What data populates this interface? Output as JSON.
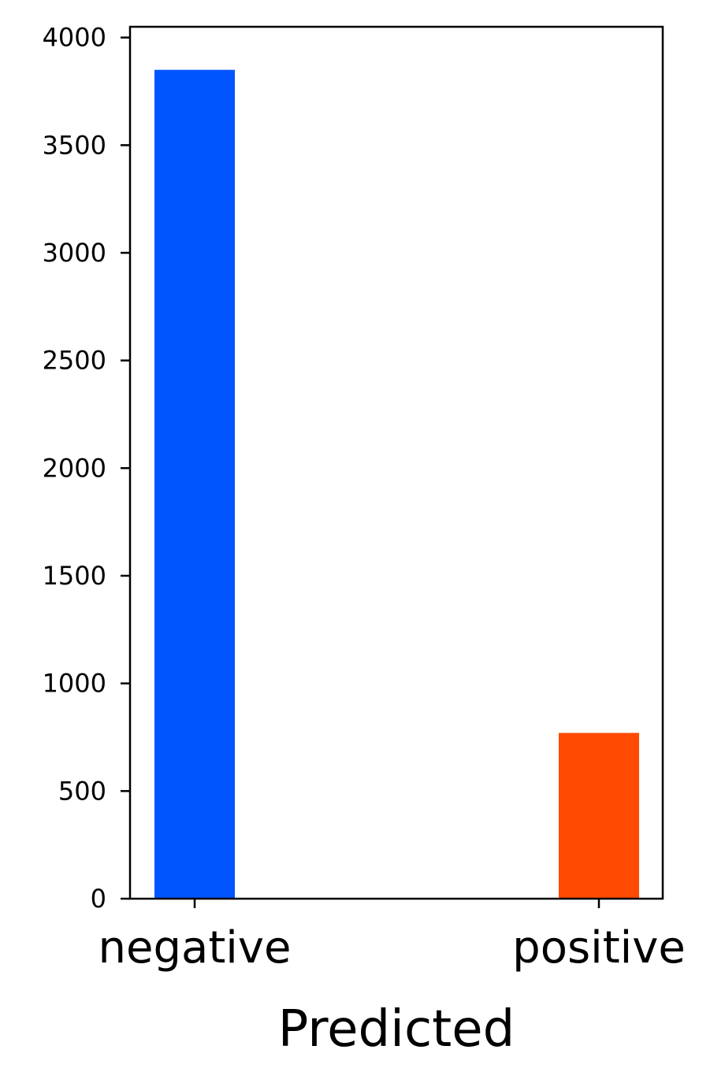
{
  "chart_data": {
    "type": "bar",
    "categories": [
      "negative",
      "positive"
    ],
    "values": [
      3850,
      770
    ],
    "colors": [
      "#0055ff",
      "#ff4a00"
    ],
    "title": "",
    "xlabel": "Predicted",
    "ylabel": "",
    "ylim": [
      0,
      4050
    ],
    "yticks": [
      0,
      500,
      1000,
      1500,
      2000,
      2500,
      3000,
      3500,
      4000
    ],
    "ytick_labels": [
      "0",
      "500",
      "1000",
      "1500",
      "2000",
      "2500",
      "3000",
      "3500",
      "4000"
    ],
    "grid": false,
    "legend": "none"
  }
}
